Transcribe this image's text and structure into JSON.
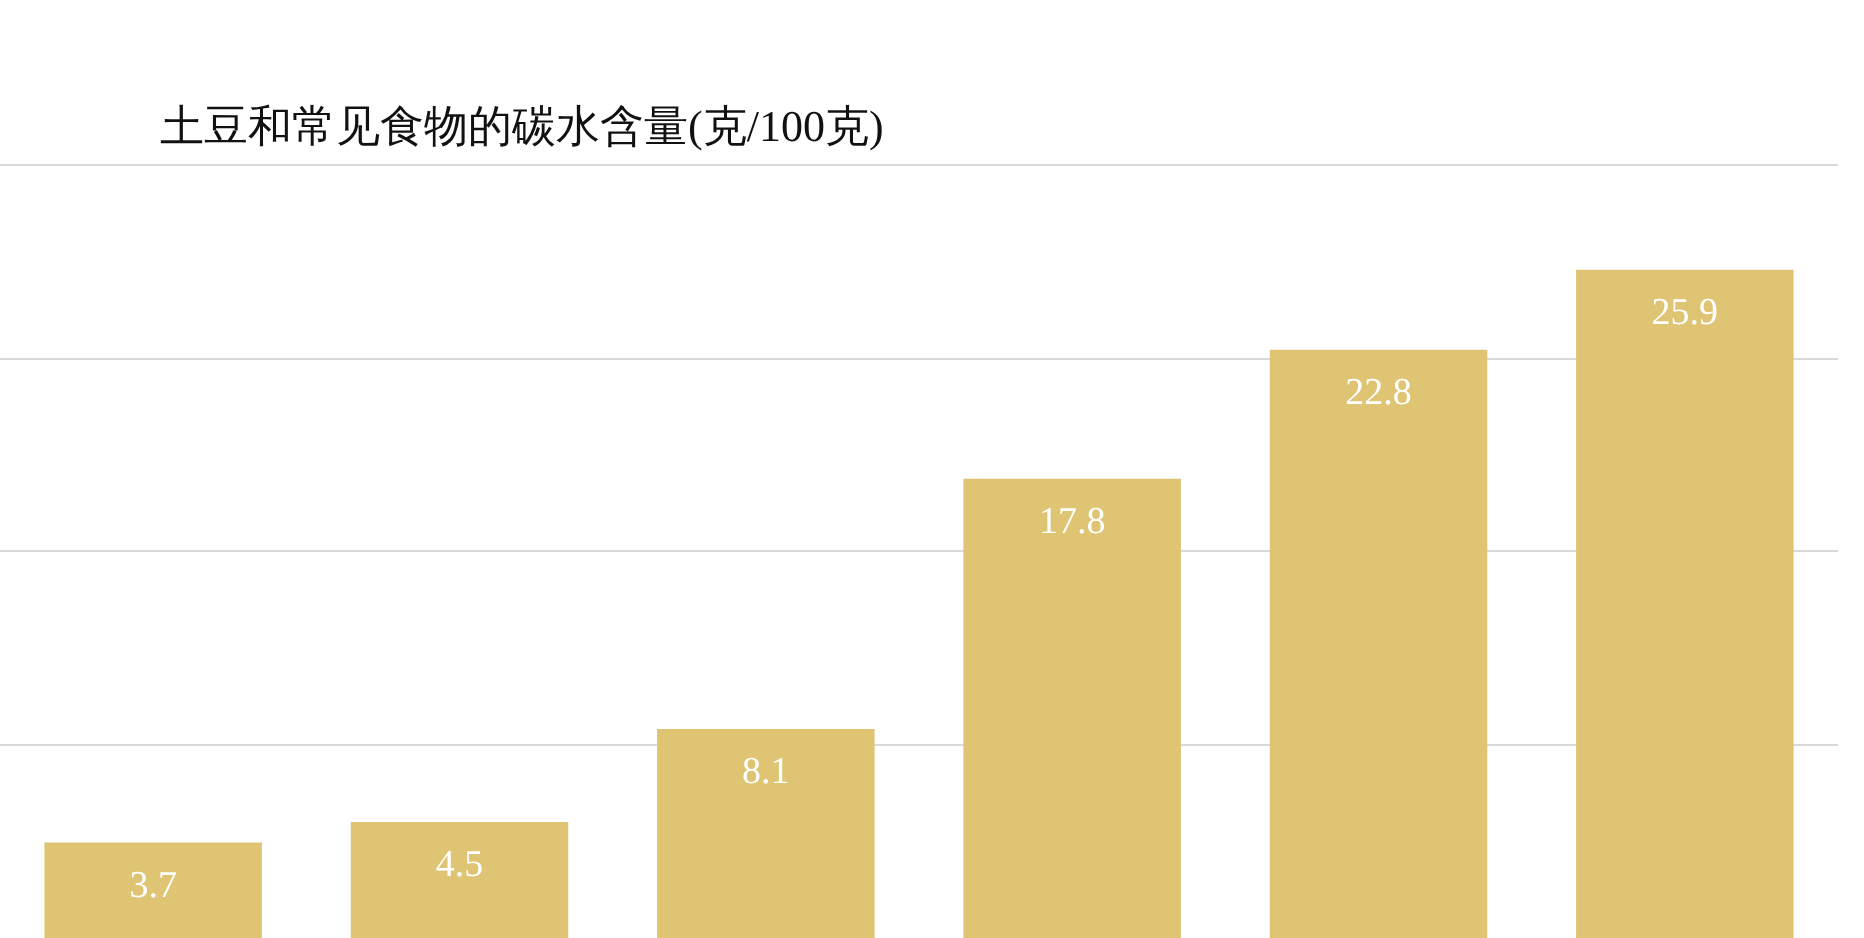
{
  "chart_data": {
    "type": "bar",
    "title": "土豆和常见食物的碳水含量(克/100克)",
    "categories": [
      null,
      null,
      null,
      null,
      null,
      null
    ],
    "values": [
      3.7,
      4.5,
      8.1,
      17.8,
      22.8,
      25.9
    ],
    "color": "#dfc473",
    "ylim": [
      0,
      30
    ],
    "yticks": [
      {
        "value": 7.5,
        "label": null
      },
      {
        "value": 15,
        "label": null
      },
      {
        "value": 22.5,
        "label": null
      },
      {
        "value": 30,
        "label": null
      }
    ],
    "tick_labels": false,
    "grid": "y",
    "data_labels": true
  }
}
